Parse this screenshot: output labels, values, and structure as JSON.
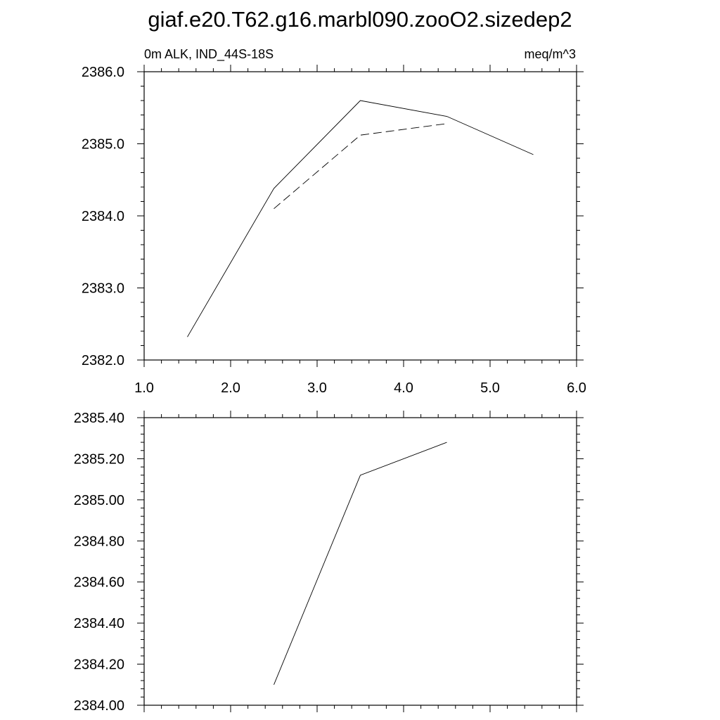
{
  "title": "giaf.e20.T62.g16.marbl090.zooO2.sizedep2",
  "chart_data": [
    {
      "type": "line",
      "left_label": "0m ALK, IND_44S-18S",
      "right_label": "meq/m^3",
      "xlim": [
        1.0,
        6.0
      ],
      "ylim": [
        2382.0,
        2386.0
      ],
      "x_ticks": [
        "1.0",
        "2.0",
        "3.0",
        "4.0",
        "5.0",
        "6.0"
      ],
      "y_ticks": [
        "2382.0",
        "2383.0",
        "2384.0",
        "2385.0",
        "2386.0"
      ],
      "series": [
        {
          "style": "solid",
          "x": [
            1.5,
            2.5,
            3.5,
            4.5,
            5.5
          ],
          "values": [
            2382.32,
            2384.38,
            2385.6,
            2385.38,
            2384.85
          ]
        },
        {
          "style": "dashed",
          "x": [
            2.5,
            3.5,
            4.5
          ],
          "values": [
            2384.1,
            2385.12,
            2385.28
          ]
        }
      ]
    },
    {
      "type": "line",
      "xlim": [
        1.0,
        6.0
      ],
      "ylim": [
        2384.0,
        2385.4
      ],
      "y_ticks": [
        "2384.00",
        "2384.20",
        "2384.40",
        "2384.60",
        "2384.80",
        "2385.00",
        "2385.20",
        "2385.40"
      ],
      "series": [
        {
          "style": "solid",
          "x": [
            2.5,
            3.5,
            4.5
          ],
          "values": [
            2384.1,
            2385.12,
            2385.28
          ]
        }
      ]
    }
  ]
}
